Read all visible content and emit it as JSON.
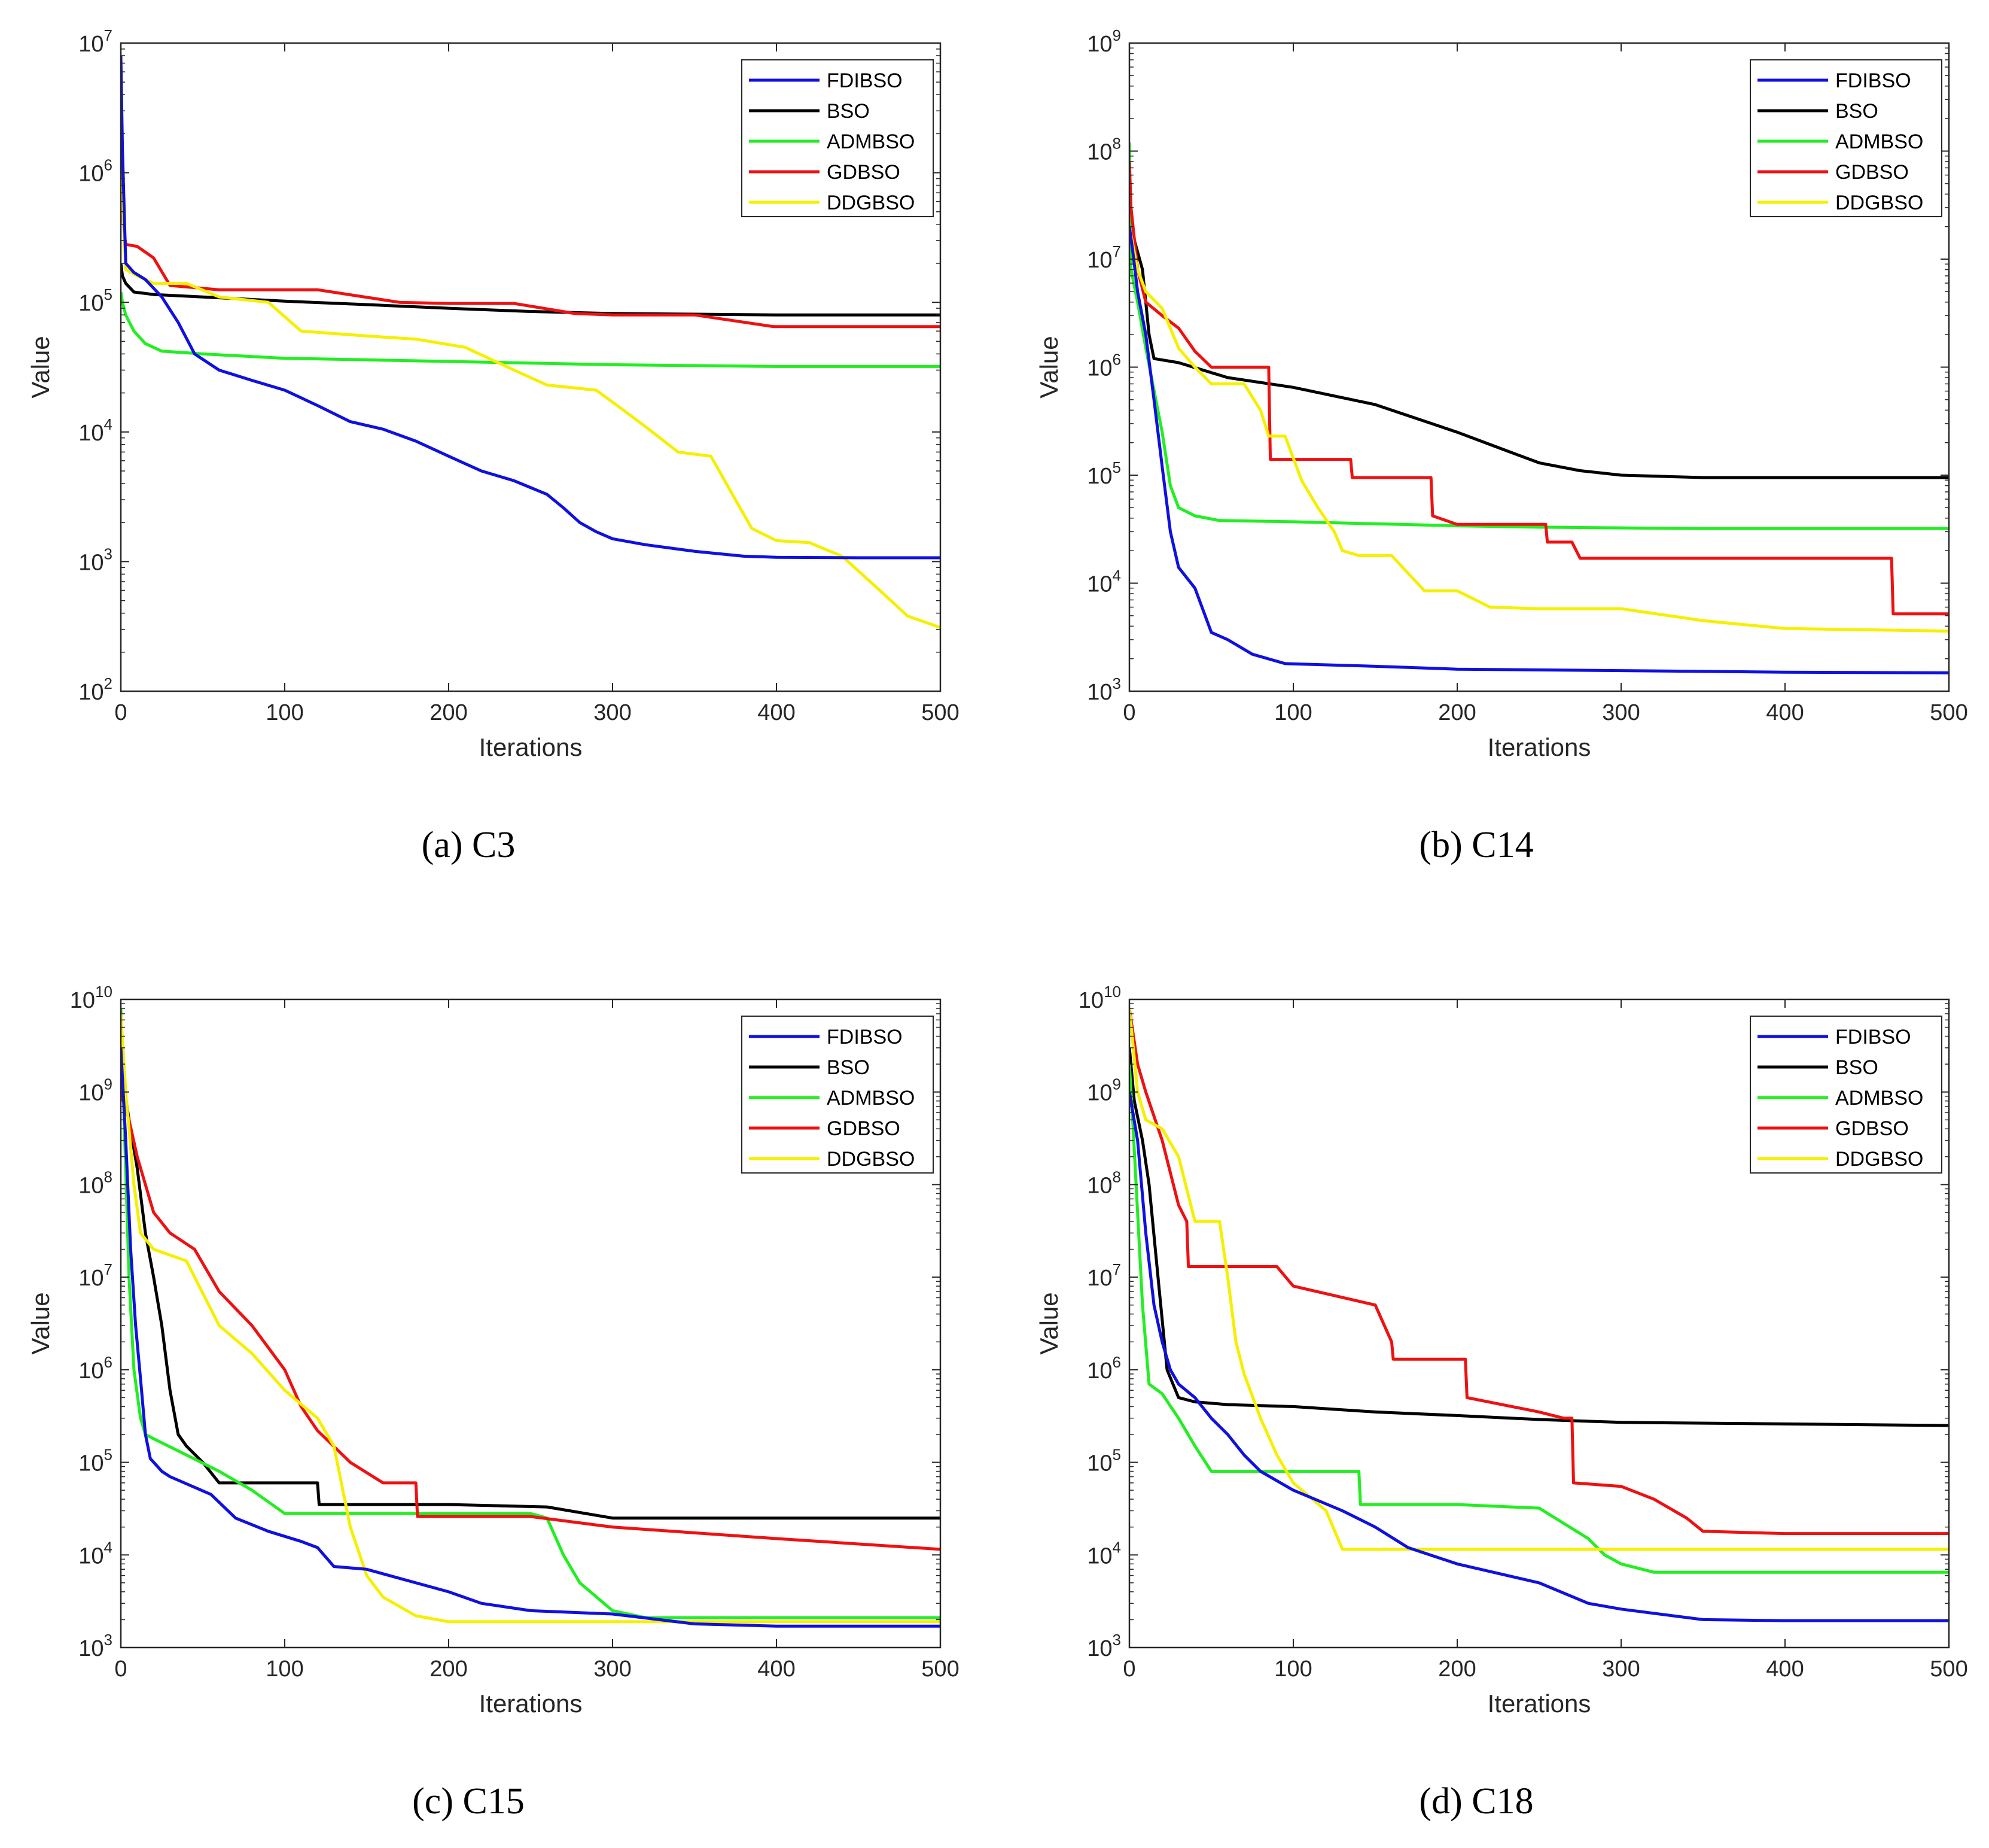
{
  "figure": {
    "colors": {
      "FDIBSO": "#1010e0",
      "BSO": "#000000",
      "ADMBSO": "#22ee22",
      "GDBSO": "#ee1111",
      "DDGBSO": "#f5f000"
    }
  },
  "chart_data": [
    {
      "type": "line",
      "caption": "(a)  C3",
      "xlabel": "Iterations",
      "ylabel": "Value",
      "yscale": "log",
      "xlim": [
        0,
        500
      ],
      "ylim_exp": [
        2,
        7
      ],
      "xticks": [
        "0",
        "100",
        "200",
        "300",
        "400",
        "500"
      ],
      "ytick_base": "10",
      "ytick_exps": [
        "2",
        "3",
        "4",
        "5",
        "6",
        "7"
      ],
      "legend_position": "top-right",
      "series": [
        {
          "name": "FDIBSO",
          "x": [
            0,
            1,
            3,
            8,
            15,
            25,
            35,
            45,
            60,
            80,
            100,
            120,
            140,
            160,
            180,
            200,
            220,
            240,
            260,
            270,
            280,
            290,
            300,
            320,
            350,
            380,
            400,
            450,
            500
          ],
          "y": [
            8000000,
            1500000,
            200000,
            170000,
            150000,
            110000,
            70000,
            40000,
            30000,
            25000,
            21000,
            16000,
            12000,
            10500,
            8500,
            6500,
            5000,
            4200,
            3300,
            2600,
            2000,
            1700,
            1500,
            1350,
            1200,
            1100,
            1080,
            1070,
            1070
          ]
        },
        {
          "name": "BSO",
          "x": [
            0,
            1,
            3,
            8,
            20,
            50,
            100,
            150,
            200,
            250,
            300,
            350,
            400,
            450,
            500
          ],
          "y": [
            200000,
            160000,
            140000,
            120000,
            115000,
            110000,
            102000,
            96000,
            90000,
            85000,
            82000,
            81000,
            80000,
            80000,
            80000
          ]
        },
        {
          "name": "ADMBSO",
          "x": [
            0,
            1,
            3,
            8,
            15,
            25,
            50,
            100,
            150,
            200,
            250,
            300,
            350,
            400,
            450,
            500
          ],
          "y": [
            120000,
            100000,
            80000,
            60000,
            48000,
            42000,
            40000,
            37000,
            36000,
            35000,
            34000,
            33000,
            32500,
            32000,
            32000,
            32000
          ]
        },
        {
          "name": "GDBSO",
          "x": [
            0,
            1,
            2,
            3,
            10,
            20,
            30,
            60,
            120,
            170,
            200,
            240,
            277,
            300,
            350,
            398,
            450,
            500
          ],
          "y": [
            7000000,
            500000,
            350000,
            280000,
            270000,
            220000,
            135000,
            125000,
            125000,
            100000,
            98000,
            98000,
            82000,
            80000,
            80000,
            65000,
            65000,
            65000
          ]
        },
        {
          "name": "DDGBSO",
          "x": [
            0,
            1,
            3,
            10,
            20,
            40,
            60,
            90,
            110,
            150,
            180,
            210,
            240,
            260,
            290,
            300,
            320,
            340,
            360,
            375,
            385,
            400,
            420,
            440,
            460,
            480,
            500
          ],
          "y": [
            4000000,
            600000,
            180000,
            160000,
            140000,
            140000,
            110000,
            100000,
            60000,
            55000,
            52000,
            45000,
            30000,
            23000,
            21000,
            17000,
            11000,
            7000,
            6500,
            3000,
            1800,
            1450,
            1400,
            1100,
            650,
            380,
            310
          ]
        }
      ]
    },
    {
      "type": "line",
      "caption": "(b)  C14",
      "xlabel": "Iterations",
      "ylabel": "Value",
      "yscale": "log",
      "xlim": [
        0,
        500
      ],
      "ylim_exp": [
        3,
        9
      ],
      "xticks": [
        "0",
        "100",
        "200",
        "300",
        "400",
        "500"
      ],
      "ytick_base": "10",
      "ytick_exps": [
        "3",
        "4",
        "5",
        "6",
        "7",
        "8",
        "9"
      ],
      "legend_position": "top-right",
      "series": [
        {
          "name": "FDIBSO",
          "x": [
            0,
            2,
            5,
            10,
            15,
            20,
            25,
            30,
            40,
            50,
            60,
            75,
            95,
            150,
            200,
            300,
            400,
            500
          ],
          "y": [
            20000000,
            12000000,
            5000000,
            2000000,
            500000,
            120000,
            30000,
            14000,
            9000,
            3500,
            3000,
            2200,
            1800,
            1700,
            1600,
            1550,
            1500,
            1480
          ]
        },
        {
          "name": "BSO",
          "x": [
            0,
            3,
            8,
            12,
            15,
            30,
            60,
            100,
            150,
            200,
            225,
            250,
            275,
            300,
            350,
            400,
            450,
            500
          ],
          "y": [
            40000000,
            15000000,
            8000000,
            2000000,
            1200000,
            1100000,
            800000,
            650000,
            450000,
            250000,
            180000,
            130000,
            110000,
            100000,
            95000,
            95000,
            95000,
            95000
          ]
        },
        {
          "name": "ADMBSO",
          "x": [
            0,
            1,
            5,
            10,
            20,
            25,
            30,
            40,
            55,
            100,
            200,
            250,
            300,
            350,
            400,
            500
          ],
          "y": [
            120000000,
            8000000,
            4000000,
            1500000,
            250000,
            80000,
            50000,
            42000,
            38000,
            37000,
            34000,
            33000,
            32500,
            32000,
            32000,
            32000
          ]
        },
        {
          "name": "GDBSO",
          "x": [
            0,
            1,
            5,
            10,
            20,
            30,
            40,
            50,
            60,
            70,
            85,
            86,
            135,
            136,
            184,
            185,
            200,
            254,
            255,
            270,
            275,
            300,
            350,
            400,
            465,
            466,
            500
          ],
          "y": [
            80000000,
            30000000,
            8000000,
            4000000,
            3000000,
            2300000,
            1400000,
            1000000,
            1000000,
            1000000,
            1000000,
            140000,
            140000,
            95000,
            95000,
            42000,
            35000,
            35000,
            24000,
            24000,
            17000,
            17000,
            17000,
            17000,
            17000,
            5200,
            5200
          ]
        },
        {
          "name": "DDGBSO",
          "x": [
            0,
            5,
            10,
            20,
            30,
            40,
            50,
            60,
            70,
            80,
            85,
            95,
            105,
            115,
            125,
            130,
            140,
            150,
            160,
            180,
            200,
            220,
            250,
            300,
            350,
            400,
            450,
            500
          ],
          "y": [
            20000000,
            8000000,
            5000000,
            3500000,
            1500000,
            1000000,
            700000,
            700000,
            700000,
            400000,
            230000,
            230000,
            90000,
            50000,
            30000,
            20000,
            18000,
            18000,
            18000,
            8500,
            8500,
            6000,
            5800,
            5800,
            4500,
            3800,
            3700,
            3600
          ]
        }
      ]
    },
    {
      "type": "line",
      "caption": "(c)  C15",
      "xlabel": "Iterations",
      "ylabel": "Value",
      "yscale": "log",
      "xlim": [
        0,
        500
      ],
      "ylim_exp": [
        3,
        10
      ],
      "xticks": [
        "0",
        "100",
        "200",
        "300",
        "400",
        "500"
      ],
      "ytick_base": "10",
      "ytick_exps": [
        "3",
        "4",
        "5",
        "6",
        "7",
        "8",
        "9",
        "10"
      ],
      "legend_position": "top-right",
      "series": [
        {
          "name": "FDIBSO",
          "x": [
            0,
            3,
            6,
            9,
            12,
            15,
            18,
            25,
            30,
            55,
            70,
            90,
            110,
            120,
            130,
            150,
            180,
            200,
            220,
            250,
            300,
            350,
            400,
            500
          ],
          "y": [
            3000000000,
            300000000,
            20000000,
            3000000,
            800000,
            200000,
            110000,
            80000,
            70000,
            45000,
            25000,
            18000,
            14000,
            12000,
            7500,
            7000,
            5000,
            4000,
            3000,
            2500,
            2300,
            1800,
            1700,
            1700
          ]
        },
        {
          "name": "BSO",
          "x": [
            0,
            5,
            10,
            15,
            20,
            25,
            30,
            35,
            40,
            50,
            60,
            100,
            120,
            121,
            200,
            260,
            300,
            400,
            500
          ],
          "y": [
            2000000000,
            500000000,
            150000000,
            30000000,
            10000000,
            3000000,
            600000,
            200000,
            150000,
            100000,
            60000,
            60000,
            60000,
            35000,
            35000,
            33000,
            25000,
            25000,
            25000
          ]
        },
        {
          "name": "ADMBSO",
          "x": [
            0,
            2,
            5,
            8,
            12,
            15,
            20,
            40,
            60,
            80,
            100,
            150,
            200,
            250,
            260,
            270,
            280,
            300,
            320,
            350,
            400,
            500
          ],
          "y": [
            8000000000,
            500000000,
            10000000,
            1000000,
            300000,
            200000,
            180000,
            120000,
            80000,
            50000,
            28000,
            28000,
            28000,
            28000,
            25000,
            10000,
            5000,
            2500,
            2100,
            2100,
            2100,
            2100
          ]
        },
        {
          "name": "GDBSO",
          "x": [
            0,
            5,
            10,
            15,
            20,
            30,
            45,
            60,
            80,
            100,
            110,
            120,
            140,
            160,
            180,
            181,
            250,
            300,
            400,
            500
          ],
          "y": [
            1000000000,
            500000000,
            200000000,
            100000000,
            50000000,
            30000000,
            20000000,
            7000000,
            3000000,
            1000000,
            400000,
            220000,
            100000,
            60000,
            60000,
            26000,
            26000,
            20000,
            15000,
            11500
          ]
        },
        {
          "name": "DDGBSO",
          "x": [
            0,
            3,
            8,
            12,
            20,
            40,
            60,
            80,
            100,
            120,
            130,
            140,
            150,
            160,
            180,
            200,
            300,
            500
          ],
          "y": [
            7000000000,
            1000000000,
            100000000,
            30000000,
            20000000,
            15000000,
            3000000,
            1500000,
            600000,
            300000,
            150000,
            20000,
            6000,
            3500,
            2200,
            1900,
            1900,
            1900
          ]
        }
      ]
    },
    {
      "type": "line",
      "caption": "(d)  C18",
      "xlabel": "Iterations",
      "ylabel": "Value",
      "yscale": "log",
      "xlim": [
        0,
        500
      ],
      "ylim_exp": [
        3,
        10
      ],
      "xticks": [
        "0",
        "100",
        "200",
        "300",
        "400",
        "500"
      ],
      "ytick_base": "10",
      "ytick_exps": [
        "3",
        "4",
        "5",
        "6",
        "7",
        "8",
        "9",
        "10"
      ],
      "legend_position": "top-right",
      "series": [
        {
          "name": "FDIBSO",
          "x": [
            0,
            5,
            10,
            15,
            20,
            25,
            30,
            40,
            50,
            60,
            70,
            80,
            100,
            130,
            150,
            170,
            200,
            250,
            280,
            300,
            350,
            400,
            500
          ],
          "y": [
            1000000000,
            300000000,
            30000000,
            5000000,
            2000000,
            1000000,
            700000,
            500000,
            300000,
            200000,
            120000,
            80000,
            50000,
            30000,
            20000,
            12000,
            8000,
            5000,
            3000,
            2600,
            2000,
            1950,
            1950
          ]
        },
        {
          "name": "BSO",
          "x": [
            0,
            3,
            8,
            12,
            18,
            23,
            30,
            40,
            60,
            100,
            150,
            200,
            250,
            300,
            400,
            500
          ],
          "y": [
            3000000000,
            800000000,
            300000000,
            100000000,
            8000000,
            1000000,
            500000,
            450000,
            420000,
            400000,
            350000,
            320000,
            290000,
            270000,
            260000,
            250000
          ]
        },
        {
          "name": "ADMBSO",
          "x": [
            0,
            2,
            5,
            8,
            12,
            20,
            30,
            40,
            50,
            100,
            140,
            141,
            200,
            250,
            280,
            290,
            300,
            320,
            350,
            500
          ],
          "y": [
            2000000000,
            500000000,
            50000000,
            5000000,
            700000,
            550000,
            300000,
            150000,
            80000,
            80000,
            80000,
            35000,
            35000,
            32000,
            15000,
            10000,
            8000,
            6500,
            6500,
            6500
          ]
        },
        {
          "name": "GDBSO",
          "x": [
            0,
            5,
            10,
            20,
            30,
            35,
            36,
            90,
            100,
            150,
            160,
            161,
            205,
            206,
            250,
            265,
            270,
            271,
            300,
            320,
            340,
            350,
            400,
            500
          ],
          "y": [
            8000000000,
            2000000000,
            1000000000,
            300000000,
            60000000,
            40000000,
            13000000,
            13000000,
            8000000,
            5000000,
            2000000,
            1300000,
            1300000,
            500000,
            350000,
            300000,
            300000,
            60000,
            55000,
            40000,
            25000,
            18000,
            17000,
            17000
          ]
        },
        {
          "name": "DDGBSO",
          "x": [
            0,
            5,
            10,
            20,
            30,
            40,
            55,
            60,
            65,
            70,
            80,
            90,
            100,
            120,
            130,
            200,
            300,
            400,
            500
          ],
          "y": [
            8000000000,
            1000000000,
            500000000,
            400000000,
            200000000,
            40000000,
            40000000,
            10000000,
            2000000,
            900000,
            300000,
            120000,
            60000,
            30000,
            11500,
            11500,
            11500,
            11500,
            11500
          ]
        }
      ]
    }
  ]
}
